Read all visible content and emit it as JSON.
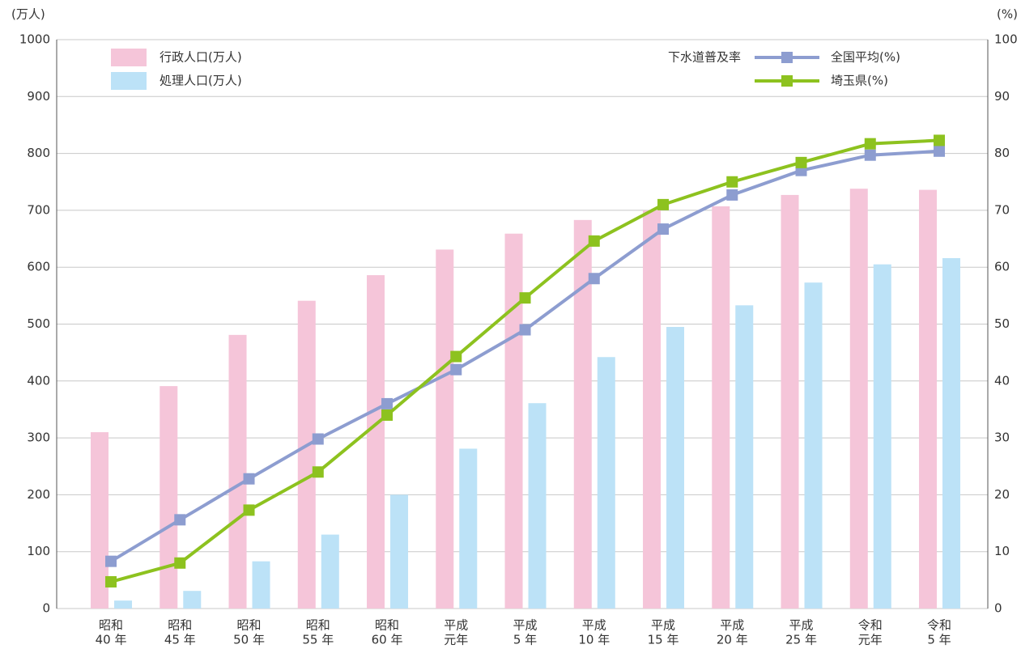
{
  "chart_data": {
    "type": "bar_line",
    "ylabel": "(万人)",
    "y2label": "(%)",
    "categories": [
      [
        "昭和",
        "40 年"
      ],
      [
        "昭和",
        "45 年"
      ],
      [
        "昭和",
        "50 年"
      ],
      [
        "昭和",
        "55 年"
      ],
      [
        "昭和",
        "60 年"
      ],
      [
        "平成",
        "元年"
      ],
      [
        "平成",
        "5 年"
      ],
      [
        "平成",
        "10 年"
      ],
      [
        "平成",
        "15 年"
      ],
      [
        "平成",
        "20 年"
      ],
      [
        "平成",
        "25 年"
      ],
      [
        "令和",
        "元年"
      ],
      [
        "令和",
        "5 年"
      ]
    ],
    "series": [
      {
        "name": "行政人口(万人)",
        "color": "#f5c5d9",
        "kind": "bar",
        "values": [
          310,
          391,
          481,
          541,
          586,
          631,
          659,
          683,
          700,
          707,
          727,
          738,
          736
        ]
      },
      {
        "name": "処理人口(万人)",
        "color": "#bce2f7",
        "kind": "bar",
        "values": [
          14,
          31,
          83,
          130,
          200,
          281,
          361,
          442,
          495,
          533,
          573,
          605,
          616
        ]
      },
      {
        "name": "全国平均(%)",
        "color": "#8d9dd0",
        "kind": "line",
        "axis": "y2",
        "values": [
          8.3,
          15.6,
          22.8,
          29.8,
          36.0,
          42.0,
          49.0,
          58.0,
          66.7,
          72.7,
          77.0,
          79.7,
          80.4
        ]
      },
      {
        "name": "埼玉県(%)",
        "color": "#8dc21f",
        "kind": "line",
        "axis": "y2",
        "values": [
          4.7,
          8.0,
          17.3,
          24.0,
          34.0,
          44.3,
          54.6,
          64.6,
          71.0,
          75.0,
          78.4,
          81.7,
          82.3
        ]
      }
    ],
    "legend_title": "下水道普及率",
    "ylim": [
      0,
      1000
    ],
    "yticks": [
      0,
      100,
      200,
      300,
      400,
      500,
      600,
      700,
      800,
      900,
      1000
    ],
    "y2lim": [
      0,
      100
    ],
    "y2ticks": [
      0,
      10,
      20,
      30,
      40,
      50,
      60,
      70,
      80,
      90,
      100
    ],
    "grid": true
  }
}
